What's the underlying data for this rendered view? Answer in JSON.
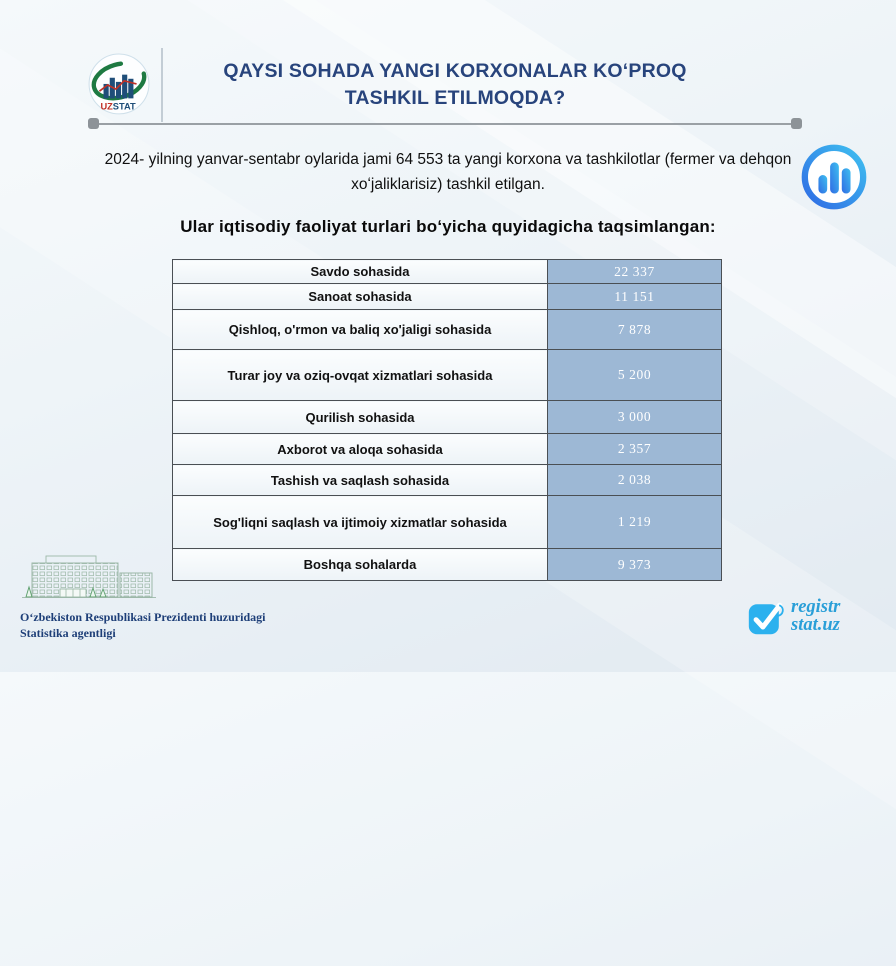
{
  "header": {
    "title_line1": "QAYSI SOHADA YANGI KORXONALAR KOʻPROQ",
    "title_line2": "TASHKIL ETILMOQDA?",
    "logo_uz": "UZ",
    "logo_stat": "STAT"
  },
  "intro_text": "2024- yilning yanvar-sentabr oylarida jami 64 553 ta yangi korxona va tashkilotlar (fermer va dehqon xoʻjaliklarisiz) tashkil etilgan.",
  "subtitle": "Ular iqtisodiy faoliyat turlari boʻyicha quyidagicha taqsimlangan:",
  "chart_data": {
    "type": "table",
    "title": "Ular iqtisodiy faoliyat turlari boʻyicha quyidagicha taqsimlangan:",
    "total_new_enterprises": 64553,
    "period": "2024 yanvar-sentabr",
    "categories": [
      "Savdo sohasida",
      "Sanoat sohasida",
      "Qishloq, o'rmon va baliq xo'jaligi sohasida",
      "Turar joy va oziq-ovqat xizmatlari sohasida",
      "Qurilish sohasida",
      "Axborot va aloqa sohasida",
      "Tashish va saqlash sohasida",
      "Sog'liqni saqlash va ijtimoiy xizmatlar sohasida",
      "Boshqa sohalarda"
    ],
    "values": [
      22337,
      11151,
      7878,
      5200,
      3000,
      2357,
      2038,
      1219,
      9373
    ],
    "display_values": [
      "22 337",
      "11 151",
      "7 878",
      "5 200",
      "3 000",
      "2 357",
      "2 038",
      "1 219",
      "9 373"
    ]
  },
  "footer": {
    "agency_line1": "Oʻzbekiston Respublikasi Prezidenti huzuridagi",
    "agency_line2": "Statistika agentligi",
    "brand_line1": "registr",
    "brand_line2": "stat.uz"
  },
  "colors": {
    "title_navy": "#28447c",
    "value_cell_blue": "#9db8d5",
    "table_border": "#4a4f54",
    "divider_gray": "#9aa0a5",
    "brand_blue": "#2a9fd8",
    "icon_gradient_start": "#2f6be4",
    "icon_gradient_end": "#3fc0f0",
    "logo_green": "#1e7a42",
    "logo_bar_blue": "#1f4e79",
    "logo_red": "#c03026"
  }
}
